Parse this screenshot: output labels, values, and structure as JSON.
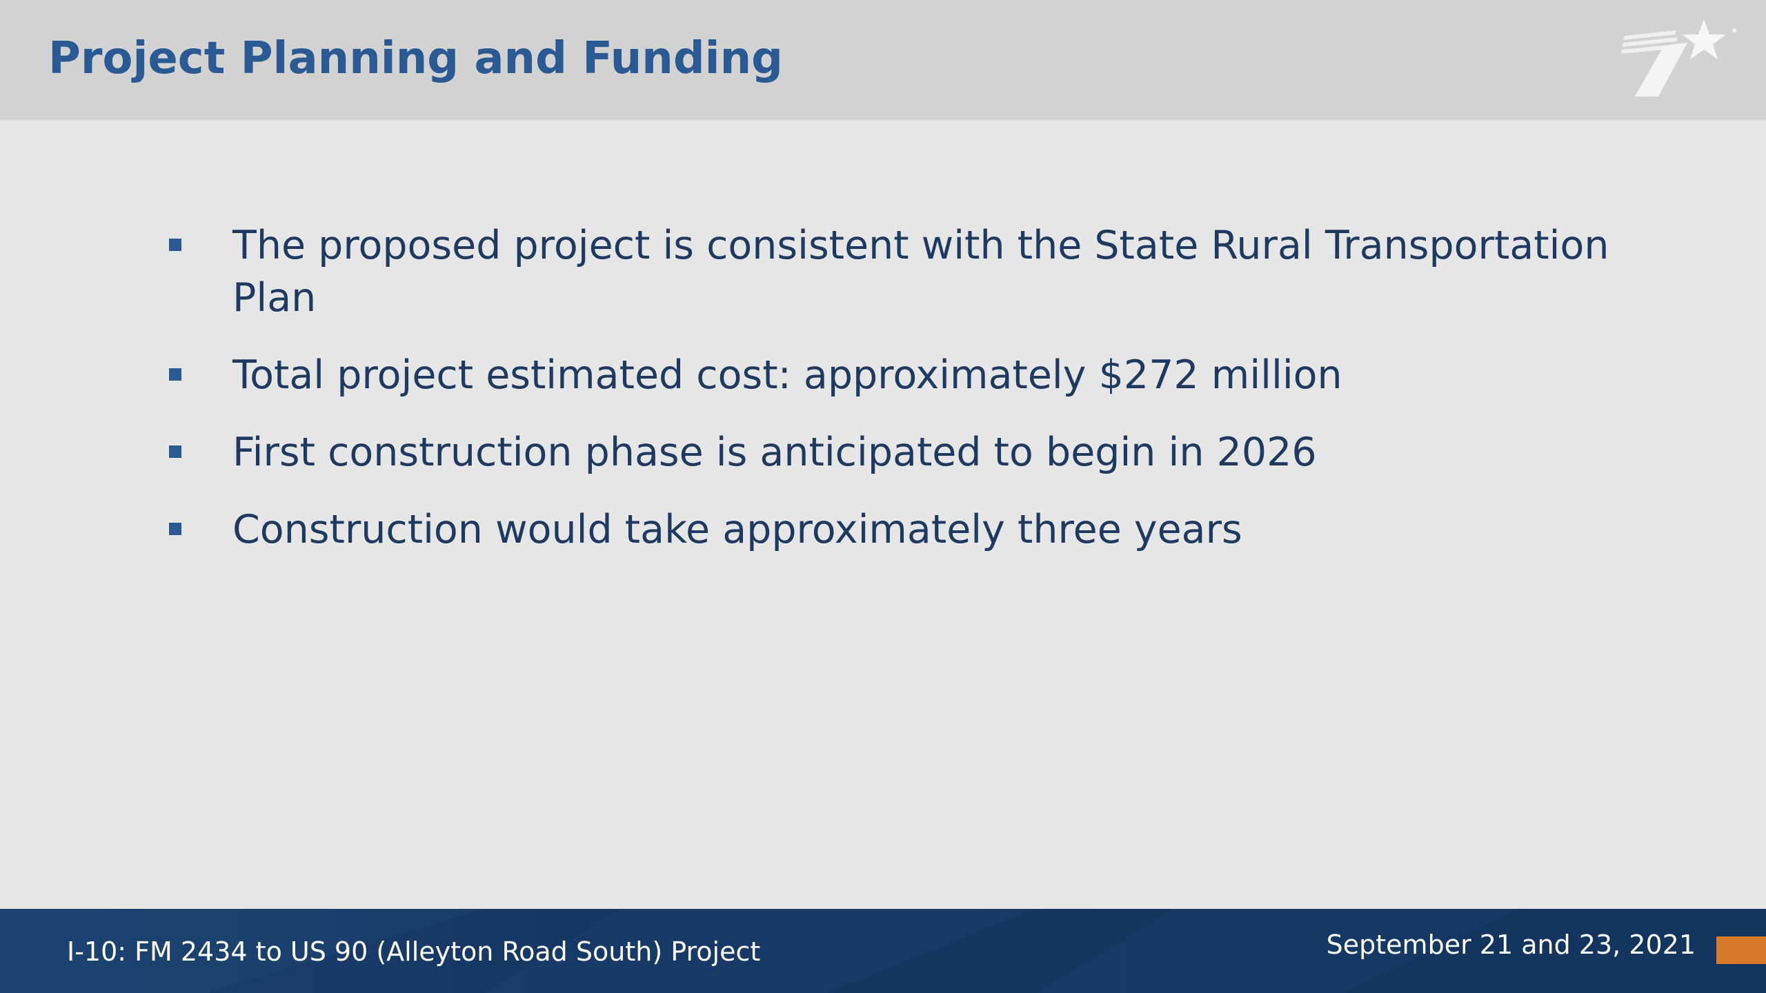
{
  "slide": {
    "title": "Project Planning and Funding",
    "bullets": [
      "The proposed project is consistent with the State Rural Transportation Plan",
      "Total project estimated cost: approximately $272 million",
      "First construction phase is anticipated to begin in 2026",
      "Construction would take approximately three years"
    ]
  },
  "footer": {
    "project_name": "I-10: FM 2434 to US 90 (Alleyton Road South) Project",
    "date": "September 21 and 23, 2021"
  },
  "icons": {
    "logo": "txdot-star-logo-icon",
    "bullet": "square-bullet-icon"
  },
  "colors": {
    "title": "#2a5a93",
    "body_text": "#1e3a60",
    "header_bg": "#d2d2d2",
    "slide_bg": "#e6e6e6",
    "footer_bg": "#173a66",
    "footer_accent": "#d67a27"
  }
}
